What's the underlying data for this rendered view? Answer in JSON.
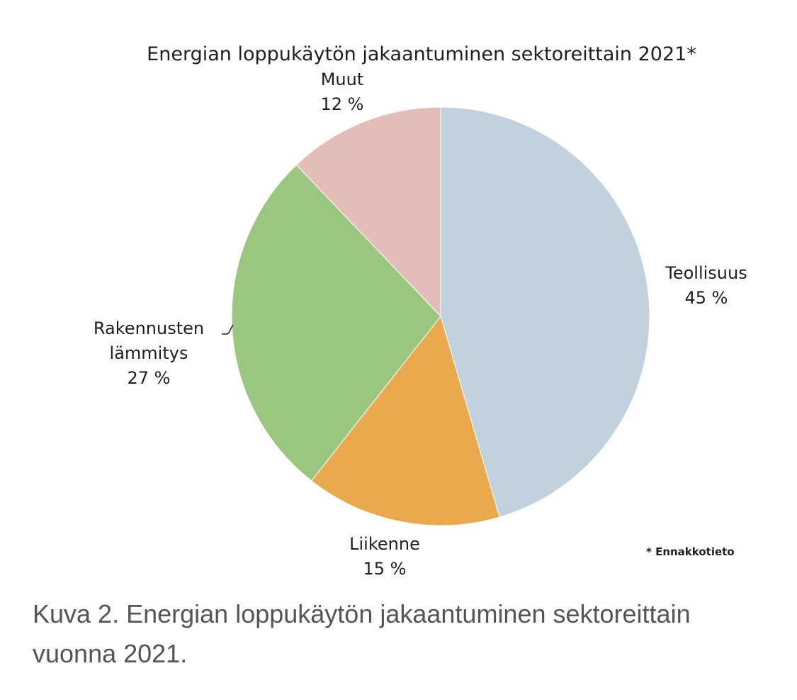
{
  "chart_data": {
    "type": "pie",
    "title": "Energian loppukäytön jakaantuminen sektoreittain 2021*",
    "slices": [
      {
        "label": [
          "Teollisuus"
        ],
        "value": 45,
        "value_label": "45 %",
        "color": "#c1d1de"
      },
      {
        "label": [
          "Liikenne"
        ],
        "value": 15,
        "value_label": "15 %",
        "color": "#eba94d"
      },
      {
        "label": [
          "Rakennusten",
          "lämmitys"
        ],
        "value": 27,
        "value_label": "27 %",
        "color": "#9bc67f"
      },
      {
        "label": [
          "Muut"
        ],
        "value": 12,
        "value_label": "12 %",
        "color": "#e4bcb8"
      }
    ],
    "start": "12 o'clock",
    "direction": "clockwise",
    "footnote": "* Ennakkotieto"
  },
  "caption": "Kuva 2. Energian loppukäytön jakaantuminen sektoreittain vuonna 2021."
}
